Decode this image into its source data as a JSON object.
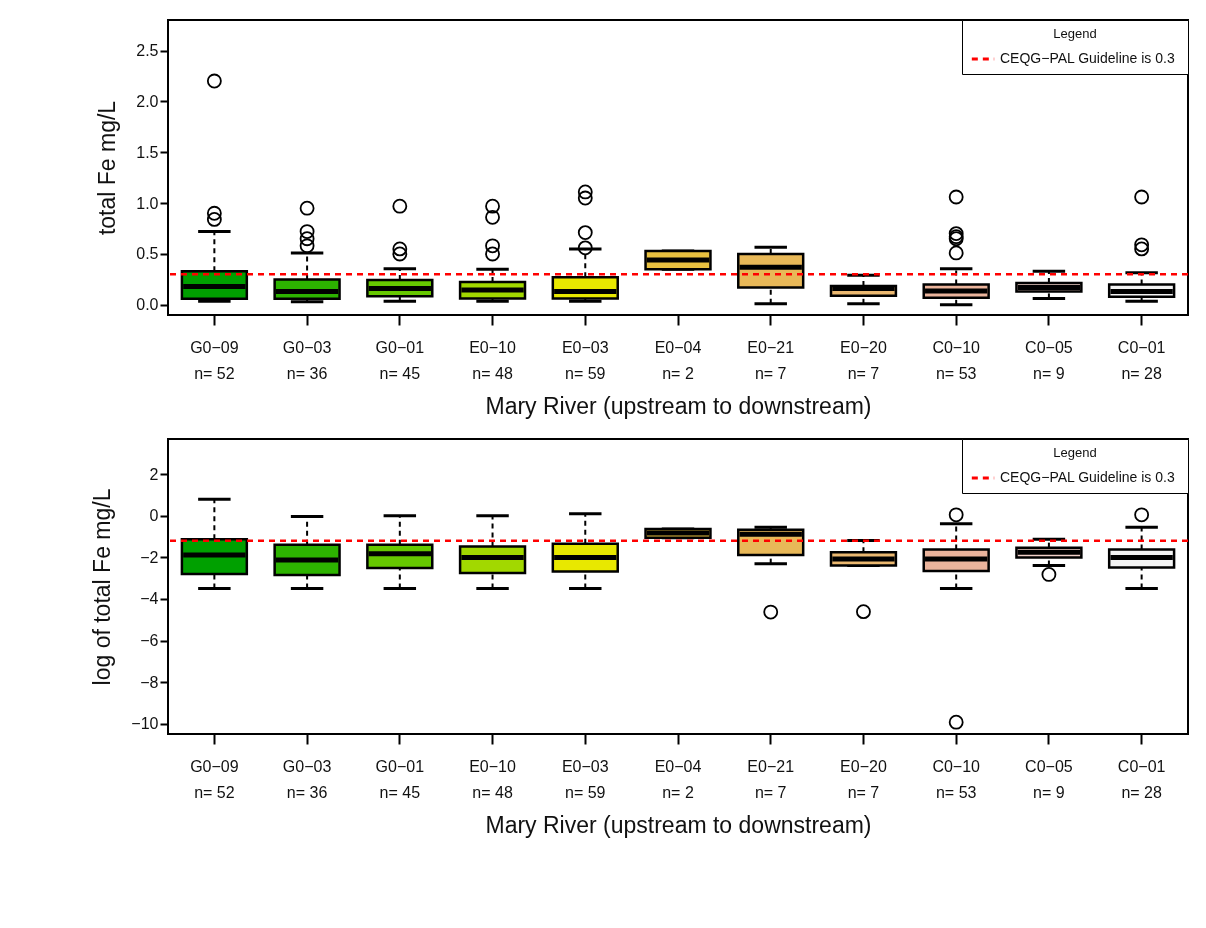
{
  "chart_data": [
    {
      "type": "box",
      "ylabel": "total  Fe mg/L",
      "xlabel": "Mary River (upstream to downstream)",
      "legend_title": "Legend",
      "legend": "top right",
      "categories": [
        "G0−09\nn= 52",
        "G0−03\nn= 36",
        "G0−01\nn= 45",
        "E0−10\nn= 48",
        "E0−03\nn= 59",
        "E0−04\nn= 2",
        "E0−21\nn= 7",
        "E0−20\nn= 7",
        "C0−10\nn= 53",
        "C0−05\nn= 9",
        "C0−01\nn= 28"
      ],
      "colors": [
        "#00a000",
        "#2db300",
        "#66c800",
        "#a2d800",
        "#e8e800",
        "#e8c040",
        "#e8b858",
        "#ebb870",
        "#ebb49c",
        "#f0d0c8",
        "#f4f4f4"
      ],
      "boxes": [
        {
          "low": 0.035,
          "q1": 0.06,
          "median": 0.18,
          "q3": 0.33,
          "high": 0.72,
          "outliers": [
            2.2,
            0.9,
            0.84
          ]
        },
        {
          "low": 0.03,
          "q1": 0.06,
          "median": 0.13,
          "q3": 0.25,
          "high": 0.51,
          "outliers": [
            0.95,
            0.72,
            0.65,
            0.58
          ]
        },
        {
          "low": 0.035,
          "q1": 0.085,
          "median": 0.16,
          "q3": 0.245,
          "high": 0.355,
          "outliers": [
            0.97,
            0.55,
            0.5
          ]
        },
        {
          "low": 0.035,
          "q1": 0.063,
          "median": 0.145,
          "q3": 0.225,
          "high": 0.35,
          "outliers": [
            0.97,
            0.86,
            0.58,
            0.5
          ]
        },
        {
          "low": 0.035,
          "q1": 0.063,
          "median": 0.13,
          "q3": 0.27,
          "high": 0.55,
          "outliers": [
            1.11,
            1.05,
            0.71,
            0.56
          ]
        },
        {
          "low": 0.35,
          "q1": 0.35,
          "median": 0.44,
          "q3": 0.53,
          "high": 0.53
        },
        {
          "low": 0.01,
          "q1": 0.17,
          "median": 0.37,
          "q3": 0.5,
          "high": 0.565
        },
        {
          "low": 0.01,
          "q1": 0.09,
          "median": 0.16,
          "q3": 0.185,
          "high": 0.29
        },
        {
          "low": 0.0,
          "q1": 0.07,
          "median": 0.135,
          "q3": 0.2,
          "high": 0.355,
          "outliers": [
            1.06,
            0.7,
            0.67,
            0.65,
            0.51
          ]
        },
        {
          "low": 0.063,
          "q1": 0.13,
          "median": 0.17,
          "q3": 0.215,
          "high": 0.33
        },
        {
          "low": 0.035,
          "q1": 0.08,
          "median": 0.13,
          "q3": 0.2,
          "high": 0.315,
          "outliers": [
            1.06,
            0.59,
            0.55
          ]
        }
      ],
      "ylim": [
        -0.1,
        2.8
      ],
      "yticks": [
        {
          "value": 0,
          "label": "0.0"
        },
        0.5,
        {
          "value": 1,
          "label": "1.0"
        },
        1.5,
        {
          "value": 2,
          "label": "2.0"
        },
        2.5
      ],
      "ref_lines": [
        {
          "axis": "y",
          "value": 0.3,
          "label": "CEQG−PAL Guideline is  0.3",
          "color": "#ff0000",
          "line_style": "dashed"
        }
      ]
    },
    {
      "type": "box",
      "ylabel": "log of total  Fe mg/L",
      "xlabel": "Mary River (upstream to downstream)",
      "legend_title": "Legend",
      "legend": "top right",
      "categories": [
        "G0−09\nn= 52",
        "G0−03\nn= 36",
        "G0−01\nn= 45",
        "E0−10\nn= 48",
        "E0−03\nn= 59",
        "E0−04\nn= 2",
        "E0−21\nn= 7",
        "E0−20\nn= 7",
        "C0−10\nn= 53",
        "C0−05\nn= 9",
        "C0−01\nn= 28"
      ],
      "colors": [
        "#00a000",
        "#2db300",
        "#66c800",
        "#a2d800",
        "#e8e800",
        "#e8c040",
        "#e8b858",
        "#ebb870",
        "#ebb49c",
        "#f0d0c8",
        "#f4f4f4"
      ],
      "boxes": [
        {
          "low": -3.5,
          "q1": -2.8,
          "median": -1.88,
          "q3": -1.12,
          "high": 0.8
        },
        {
          "low": -3.5,
          "q1": -2.85,
          "median": -2.13,
          "q3": -1.39,
          "high": -0.03
        },
        {
          "low": -3.5,
          "q1": -2.51,
          "median": -1.82,
          "q3": -1.39,
          "high": 0
        },
        {
          "low": -3.5,
          "q1": -2.75,
          "median": -2.01,
          "q3": -1.48,
          "high": 0
        },
        {
          "low": -3.5,
          "q1": -2.68,
          "median": -2.01,
          "q3": -1.34,
          "high": 0.1
        },
        {
          "low": -1.05,
          "q1": -1.05,
          "median": -0.82,
          "q3": -0.63,
          "high": -0.63
        },
        {
          "low": -2.3,
          "q1": -1.88,
          "median": -0.89,
          "q3": -0.67,
          "high": -0.55,
          "outliers": [
            -4.63
          ]
        },
        {
          "low": -2.39,
          "q1": -2.39,
          "median": -2.08,
          "q3": -1.75,
          "high": -1.19,
          "outliers": [
            -4.61
          ]
        },
        {
          "low": -3.5,
          "q1": -2.65,
          "median": -2.08,
          "q3": -1.62,
          "high": -0.38,
          "outliers": [
            0.05,
            -9.93
          ]
        },
        {
          "low": -2.39,
          "q1": -2.0,
          "median": -1.75,
          "q3": -1.53,
          "high": -1.13,
          "outliers": [
            -2.82
          ]
        },
        {
          "low": -3.5,
          "q1": -2.48,
          "median": -2.0,
          "q3": -1.62,
          "high": -0.55,
          "outliers": [
            0.05
          ]
        }
      ],
      "ylim": [
        -10.5,
        3.7
      ],
      "yticks": [
        -10,
        -8,
        -6,
        -4,
        -2,
        0,
        2
      ],
      "ref_lines": [
        {
          "axis": "y",
          "value": -1.2,
          "label": "CEQG−PAL Guideline is  0.3",
          "color": "#ff0000",
          "line_style": "dashed"
        }
      ]
    }
  ]
}
